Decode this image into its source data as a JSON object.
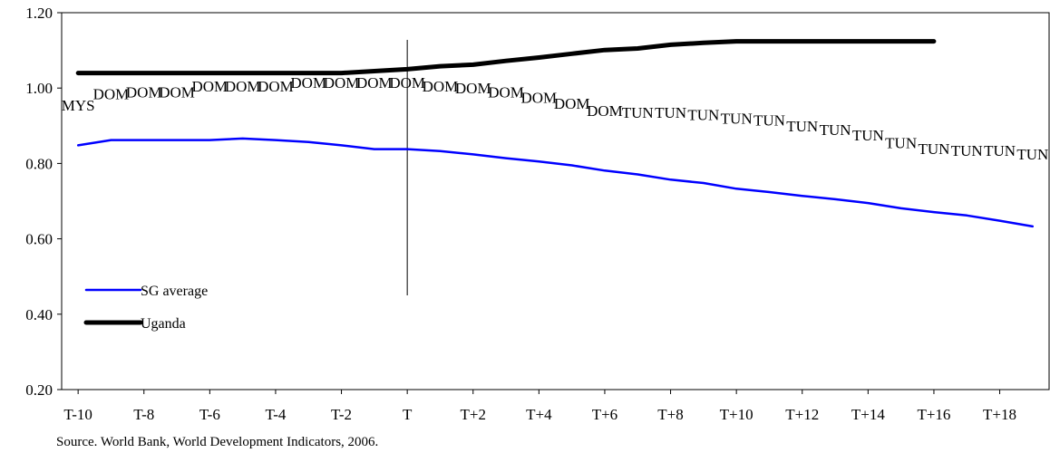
{
  "chart_data": {
    "type": "line",
    "title": "",
    "xlabel": "",
    "ylabel": "",
    "ylim": [
      0.2,
      1.2
    ],
    "y_ticks": [
      "0.20",
      "0.40",
      "0.60",
      "0.80",
      "1.00",
      "1.20"
    ],
    "y_tick_values": [
      0.2,
      0.4,
      0.6,
      0.8,
      1.0,
      1.2
    ],
    "x_ticks": [
      "T-10",
      "T-8",
      "T-6",
      "T-4",
      "T-2",
      "T",
      "T+2",
      "T+4",
      "T+6",
      "T+8",
      "T+10",
      "T+12",
      "T+14",
      "T+16",
      "T+18"
    ],
    "x_tick_values": [
      -10,
      -8,
      -6,
      -4,
      -2,
      0,
      2,
      4,
      6,
      8,
      10,
      12,
      14,
      16,
      18
    ],
    "xlim": [
      -10.5,
      19.5
    ],
    "grid": false,
    "legend_position": "bottom-left",
    "reference_line_x": 0,
    "series": [
      {
        "name": "SG average",
        "color": "#0000ff",
        "x": [
          -10,
          -9,
          -8,
          -7,
          -6,
          -5,
          -4,
          -3,
          -2,
          -1,
          0,
          1,
          2,
          3,
          4,
          5,
          6,
          7,
          8,
          9,
          10,
          11,
          12,
          13,
          14,
          15,
          16,
          17,
          18,
          19
        ],
        "values": [
          0.848,
          0.862,
          0.862,
          0.862,
          0.862,
          0.866,
          0.862,
          0.857,
          0.848,
          0.838,
          0.838,
          0.833,
          0.824,
          0.814,
          0.805,
          0.795,
          0.781,
          0.771,
          0.757,
          0.748,
          0.733,
          0.724,
          0.714,
          0.705,
          0.695,
          0.681,
          0.671,
          0.662,
          0.648,
          0.633
        ]
      },
      {
        "name": "Uganda",
        "color": "#000000",
        "x": [
          -10,
          -9,
          -8,
          -7,
          -6,
          -5,
          -4,
          -3,
          -2,
          -1,
          0,
          1,
          2,
          3,
          4,
          5,
          6,
          7,
          8,
          9,
          10,
          11,
          12,
          13,
          14,
          15,
          16
        ],
        "values": [
          1.04,
          1.04,
          1.04,
          1.04,
          1.04,
          1.04,
          1.04,
          1.04,
          1.04,
          1.045,
          1.05,
          1.058,
          1.062,
          1.072,
          1.081,
          1.091,
          1.101,
          1.105,
          1.115,
          1.12,
          1.124,
          1.124,
          1.124,
          1.124,
          1.124,
          1.124,
          1.124
        ]
      }
    ],
    "point_labels": [
      {
        "x": -10,
        "y": 0.955,
        "text": "MYS"
      },
      {
        "x": -9,
        "y": 0.985,
        "text": "DOM"
      },
      {
        "x": -8,
        "y": 0.99,
        "text": "DOM"
      },
      {
        "x": -7,
        "y": 0.99,
        "text": "DOM"
      },
      {
        "x": -6,
        "y": 1.005,
        "text": "DOM"
      },
      {
        "x": -5,
        "y": 1.005,
        "text": "DOM"
      },
      {
        "x": -4,
        "y": 1.005,
        "text": "DOM"
      },
      {
        "x": -3,
        "y": 1.015,
        "text": "DOM"
      },
      {
        "x": -2,
        "y": 1.015,
        "text": "DOM"
      },
      {
        "x": -1,
        "y": 1.015,
        "text": "DOM"
      },
      {
        "x": 0,
        "y": 1.015,
        "text": "DOM"
      },
      {
        "x": 1,
        "y": 1.005,
        "text": "DOM"
      },
      {
        "x": 2,
        "y": 1.0,
        "text": "DOM"
      },
      {
        "x": 3,
        "y": 0.99,
        "text": "DOM"
      },
      {
        "x": 4,
        "y": 0.975,
        "text": "DOM"
      },
      {
        "x": 5,
        "y": 0.96,
        "text": "DOM"
      },
      {
        "x": 6,
        "y": 0.94,
        "text": "DOM"
      },
      {
        "x": 7,
        "y": 0.935,
        "text": "TUN"
      },
      {
        "x": 8,
        "y": 0.935,
        "text": "TUN"
      },
      {
        "x": 9,
        "y": 0.93,
        "text": "TUN"
      },
      {
        "x": 10,
        "y": 0.92,
        "text": "TUN"
      },
      {
        "x": 11,
        "y": 0.915,
        "text": "TUN"
      },
      {
        "x": 12,
        "y": 0.9,
        "text": "TUN"
      },
      {
        "x": 13,
        "y": 0.89,
        "text": "TUN"
      },
      {
        "x": 14,
        "y": 0.875,
        "text": "TUN"
      },
      {
        "x": 15,
        "y": 0.855,
        "text": "TUN"
      },
      {
        "x": 16,
        "y": 0.84,
        "text": "TUN"
      },
      {
        "x": 17,
        "y": 0.835,
        "text": "TUN"
      },
      {
        "x": 18,
        "y": 0.835,
        "text": "TUN"
      },
      {
        "x": 19,
        "y": 0.825,
        "text": "TUN"
      }
    ],
    "source": "Source. World Bank, World Development Indicators, 2006."
  }
}
